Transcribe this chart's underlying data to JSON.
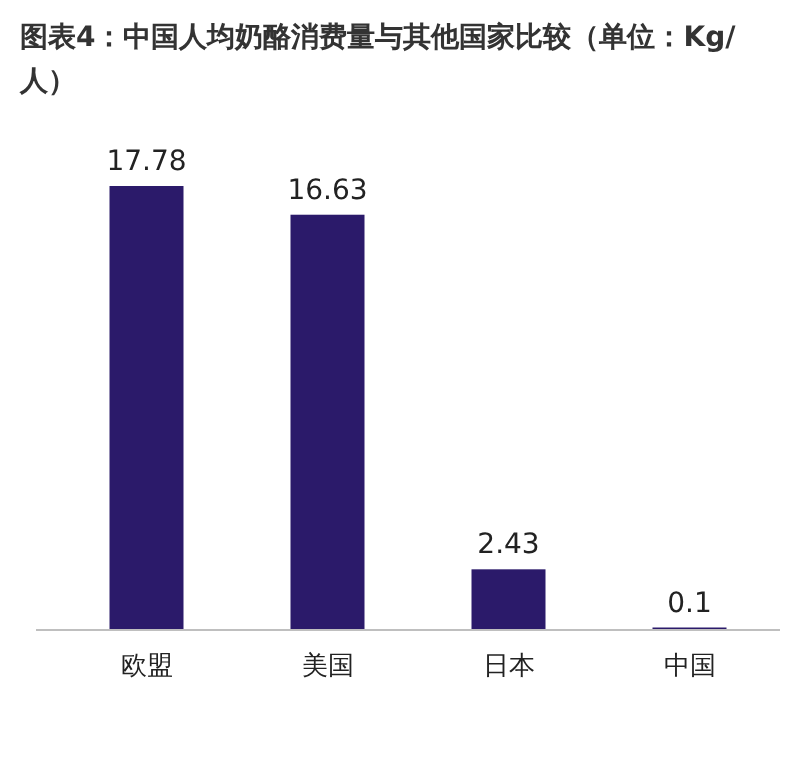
{
  "chart_data": {
    "type": "bar",
    "title": "图表4：中国人均奶酪消费量与其他国家比较（单位：Kg/人）",
    "categories": [
      "欧盟",
      "美国",
      "日本",
      "中国"
    ],
    "values": [
      17.78,
      16.63,
      2.43,
      0.1
    ],
    "color": "#2b1a6a",
    "data_labels": true
  }
}
